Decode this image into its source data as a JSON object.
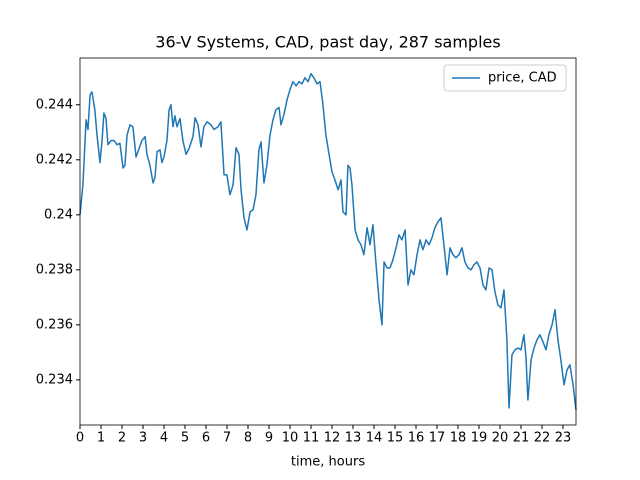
{
  "chart_data": {
    "type": "line",
    "title": "36-V Systems, CAD, past day, 287 samples",
    "x_label": "time, hours",
    "x": [
      0,
      0.14,
      0.29,
      0.38,
      0.48,
      0.57,
      0.71,
      0.81,
      0.95,
      1.05,
      1.14,
      1.24,
      1.33,
      1.48,
      1.62,
      1.76,
      1.9,
      2.05,
      2.14,
      2.24,
      2.38,
      2.52,
      2.67,
      2.81,
      2.95,
      3.1,
      3.19,
      3.33,
      3.48,
      3.57,
      3.67,
      3.81,
      3.9,
      4.0,
      4.14,
      4.24,
      4.33,
      4.43,
      4.52,
      4.62,
      4.76,
      4.9,
      5.05,
      5.19,
      5.38,
      5.48,
      5.62,
      5.76,
      5.9,
      6.05,
      6.24,
      6.38,
      6.57,
      6.71,
      6.86,
      7.0,
      7.14,
      7.29,
      7.43,
      7.57,
      7.67,
      7.81,
      7.95,
      8.1,
      8.24,
      8.38,
      8.52,
      8.62,
      8.76,
      8.9,
      9.05,
      9.19,
      9.33,
      9.48,
      9.57,
      9.71,
      9.86,
      10.0,
      10.14,
      10.29,
      10.43,
      10.57,
      10.71,
      10.86,
      11.0,
      11.14,
      11.29,
      11.43,
      11.57,
      11.71,
      11.86,
      12.0,
      12.14,
      12.29,
      12.43,
      12.52,
      12.67,
      12.76,
      12.86,
      12.95,
      13.1,
      13.24,
      13.38,
      13.52,
      13.67,
      13.81,
      13.95,
      14.1,
      14.24,
      14.38,
      14.48,
      14.62,
      14.76,
      14.9,
      15.05,
      15.19,
      15.33,
      15.48,
      15.62,
      15.76,
      15.9,
      16.05,
      16.19,
      16.33,
      16.48,
      16.62,
      16.76,
      16.9,
      17.05,
      17.19,
      17.33,
      17.48,
      17.62,
      17.76,
      17.9,
      18.05,
      18.19,
      18.33,
      18.48,
      18.62,
      18.76,
      18.9,
      19.05,
      19.19,
      19.33,
      19.48,
      19.62,
      19.76,
      19.9,
      20.05,
      20.19,
      20.33,
      20.43,
      20.57,
      20.71,
      20.86,
      21.0,
      21.14,
      21.24,
      21.33,
      21.48,
      21.62,
      21.76,
      21.9,
      22.05,
      22.19,
      22.33,
      22.48,
      22.62,
      22.76,
      22.9,
      23.05,
      23.19,
      23.33,
      23.48,
      23.62
    ],
    "series": [
      {
        "name": "price, CAD",
        "color": "#1f77b4",
        "values": [
          0.24,
          0.2411,
          0.24345,
          0.2431,
          0.24436,
          0.24447,
          0.2438,
          0.2429,
          0.2419,
          0.2427,
          0.2437,
          0.2435,
          0.24255,
          0.2427,
          0.2427,
          0.24255,
          0.2426,
          0.2417,
          0.2418,
          0.2429,
          0.24327,
          0.2432,
          0.2421,
          0.2424,
          0.2427,
          0.24284,
          0.2422,
          0.2418,
          0.24116,
          0.24135,
          0.2423,
          0.24236,
          0.2419,
          0.2421,
          0.2427,
          0.2438,
          0.244,
          0.2432,
          0.2436,
          0.2432,
          0.2435,
          0.2427,
          0.2422,
          0.2424,
          0.24284,
          0.24353,
          0.24327,
          0.24247,
          0.2432,
          0.24338,
          0.24327,
          0.2431,
          0.2432,
          0.24338,
          0.24145,
          0.24145,
          0.24073,
          0.24109,
          0.24244,
          0.2422,
          0.24091,
          0.23989,
          0.23945,
          0.24011,
          0.24018,
          0.24073,
          0.24236,
          0.24265,
          0.24116,
          0.2418,
          0.2429,
          0.24345,
          0.24382,
          0.2439,
          0.24327,
          0.24364,
          0.24418,
          0.24455,
          0.24484,
          0.24469,
          0.24484,
          0.24476,
          0.24498,
          0.24484,
          0.24513,
          0.24498,
          0.24476,
          0.24484,
          0.244,
          0.2429,
          0.2422,
          0.24156,
          0.24127,
          0.24091,
          0.24127,
          0.24011,
          0.24,
          0.2418,
          0.2417,
          0.24109,
          0.23945,
          0.23909,
          0.23891,
          0.23855,
          0.23953,
          0.23891,
          0.23964,
          0.23818,
          0.23691,
          0.236,
          0.23829,
          0.23807,
          0.23807,
          0.23836,
          0.2388,
          0.23927,
          0.23909,
          0.23945,
          0.23745,
          0.238,
          0.23782,
          0.23855,
          0.23909,
          0.23873,
          0.23909,
          0.23891,
          0.23916,
          0.23953,
          0.23975,
          0.23989,
          0.23891,
          0.23782,
          0.2388,
          0.23855,
          0.23844,
          0.23855,
          0.2388,
          0.23829,
          0.23807,
          0.238,
          0.23818,
          0.23829,
          0.23807,
          0.23745,
          0.23727,
          0.23807,
          0.238,
          0.2372,
          0.23673,
          0.23662,
          0.23727,
          0.23545,
          0.23298,
          0.23491,
          0.23509,
          0.23516,
          0.23509,
          0.23564,
          0.2348,
          0.23327,
          0.23473,
          0.23516,
          0.23545,
          0.23564,
          0.23538,
          0.23509,
          0.23564,
          0.236,
          0.23655,
          0.23545,
          0.23473,
          0.23382,
          0.23436,
          0.23455,
          0.23382,
          0.23291
        ]
      }
    ],
    "xlim": [
      0,
      23.62
    ],
    "ylim": [
      0.23236,
      0.2457
    ],
    "xticks": [
      0,
      1,
      2,
      3,
      4,
      5,
      6,
      7,
      8,
      9,
      10,
      11,
      12,
      13,
      14,
      15,
      16,
      17,
      18,
      19,
      20,
      21,
      22,
      23
    ],
    "yticks": [
      0.234,
      0.236,
      0.238,
      0.24,
      0.242,
      0.244
    ],
    "grid": false,
    "legend": "upper-right"
  }
}
